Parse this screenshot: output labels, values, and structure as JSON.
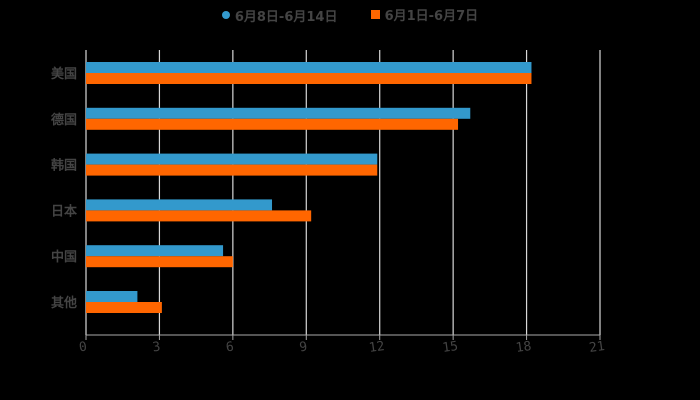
{
  "legend": [
    {
      "label": "6月8日-6月14日",
      "color": "#3399cc",
      "shape": "circle"
    },
    {
      "label": "6月1日-6月7日",
      "color": "#ff6600",
      "shape": "square"
    }
  ],
  "colors": {
    "background": "#000000",
    "grid": "#d8d8d8",
    "axis": "#aaaaaa",
    "text": "#444444"
  },
  "chart_data": {
    "type": "bar",
    "orientation": "horizontal",
    "title": "",
    "xlabel": "",
    "ylabel": "",
    "categories": [
      "美国",
      "德国",
      "韩国",
      "日本",
      "中国",
      "其他"
    ],
    "series": [
      {
        "name": "6月8日-6月14日",
        "color": "#3399cc",
        "values": [
          18.2,
          15.7,
          11.9,
          7.6,
          5.6,
          2.1
        ]
      },
      {
        "name": "6月1日-6月7日",
        "color": "#ff6600",
        "values": [
          18.2,
          15.2,
          11.9,
          9.2,
          6.0,
          3.1
        ]
      }
    ],
    "xlim": [
      0,
      21
    ],
    "xticks": [
      0,
      3,
      6,
      9,
      12,
      15,
      18,
      21
    ],
    "grid": true,
    "legend_position": "top"
  }
}
